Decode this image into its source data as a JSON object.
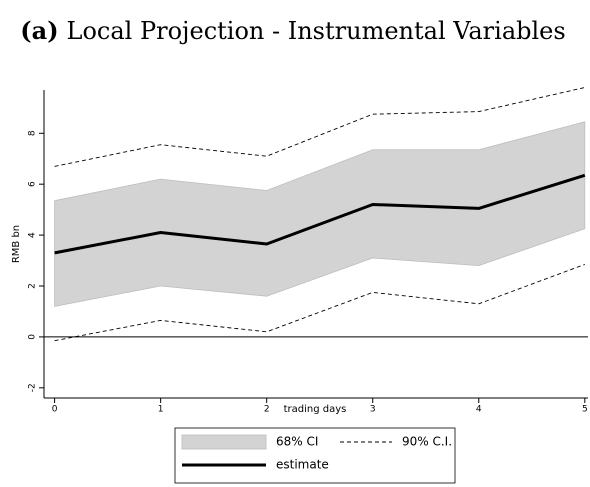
{
  "chart_data": {
    "type": "line",
    "panel_label": "(a)",
    "title": "Local Projection - Instrumental Variables",
    "x_label": "trading days",
    "y_label": "RMB bn",
    "x": [
      0,
      1,
      2,
      3,
      4,
      5
    ],
    "xlim": [
      -0.1,
      5.03
    ],
    "xticks": [
      0,
      1,
      2,
      3,
      4,
      5
    ],
    "ylim": [
      -2.4,
      9.7
    ],
    "yticks": [
      -2,
      0,
      2,
      4,
      6,
      8
    ],
    "reference_line": 0,
    "grid": false,
    "legend": "bottom",
    "series": [
      {
        "name": "68% CI",
        "style": "band",
        "color": "#d3d3d3",
        "lower": [
          1.2,
          2.0,
          1.6,
          3.1,
          2.8,
          4.25
        ],
        "upper": [
          5.35,
          6.2,
          5.75,
          7.35,
          7.35,
          8.45
        ]
      },
      {
        "name": "90% C.I.",
        "style": "dashed",
        "color": "#000000",
        "lower": [
          -0.15,
          0.65,
          0.2,
          1.75,
          1.3,
          2.85
        ],
        "upper": [
          6.7,
          7.55,
          7.1,
          8.75,
          8.85,
          9.8
        ]
      },
      {
        "name": "estimate",
        "style": "solid",
        "color": "#000000",
        "values": [
          3.3,
          4.1,
          3.65,
          5.2,
          5.05,
          6.35
        ]
      }
    ]
  }
}
